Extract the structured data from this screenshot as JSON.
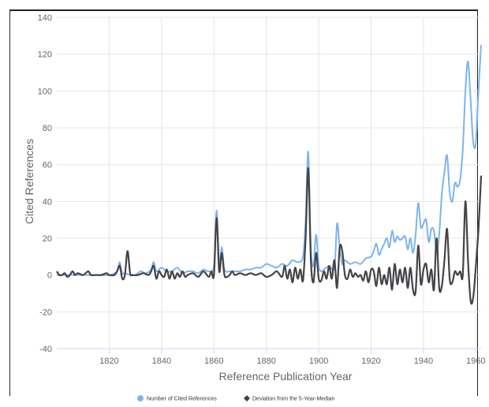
{
  "chart_data": {
    "type": "line",
    "xlabel": "Reference Publication Year",
    "ylabel": "Cited References",
    "xlim": [
      1800,
      1962
    ],
    "ylim": [
      -40,
      140
    ],
    "x_ticks": [
      1820,
      1840,
      1860,
      1880,
      1900,
      1920,
      1940,
      1960
    ],
    "y_ticks": [
      -40,
      -20,
      0,
      20,
      40,
      60,
      80,
      100,
      120,
      140
    ],
    "grid": true,
    "legend_position": "bottom",
    "series": [
      {
        "name": "Number of Cited References",
        "color": "#7cb5ec",
        "points": [
          [
            1800,
            0
          ],
          [
            1805,
            0
          ],
          [
            1810,
            0
          ],
          [
            1815,
            0
          ],
          [
            1820,
            0
          ],
          [
            1823,
            2
          ],
          [
            1824,
            7
          ],
          [
            1825,
            1
          ],
          [
            1826,
            1
          ],
          [
            1828,
            0
          ],
          [
            1830,
            0
          ],
          [
            1832,
            2
          ],
          [
            1834,
            1
          ],
          [
            1836,
            3
          ],
          [
            1837,
            7
          ],
          [
            1838,
            2
          ],
          [
            1840,
            4
          ],
          [
            1842,
            2
          ],
          [
            1844,
            2
          ],
          [
            1846,
            4
          ],
          [
            1848,
            1
          ],
          [
            1850,
            2
          ],
          [
            1852,
            2
          ],
          [
            1854,
            1
          ],
          [
            1856,
            3
          ],
          [
            1858,
            2
          ],
          [
            1860,
            5
          ],
          [
            1861,
            35
          ],
          [
            1862,
            6
          ],
          [
            1863,
            15
          ],
          [
            1864,
            3
          ],
          [
            1866,
            2
          ],
          [
            1868,
            2
          ],
          [
            1870,
            2
          ],
          [
            1872,
            3
          ],
          [
            1874,
            3
          ],
          [
            1876,
            4
          ],
          [
            1878,
            4
          ],
          [
            1880,
            6
          ],
          [
            1882,
            5
          ],
          [
            1884,
            4
          ],
          [
            1886,
            6
          ],
          [
            1888,
            5
          ],
          [
            1890,
            8
          ],
          [
            1892,
            7
          ],
          [
            1894,
            10
          ],
          [
            1895,
            30
          ],
          [
            1896,
            67
          ],
          [
            1897,
            15
          ],
          [
            1898,
            5
          ],
          [
            1899,
            22
          ],
          [
            1900,
            5
          ],
          [
            1901,
            2
          ],
          [
            1902,
            3
          ],
          [
            1904,
            5
          ],
          [
            1906,
            4
          ],
          [
            1907,
            28
          ],
          [
            1908,
            15
          ],
          [
            1909,
            6
          ],
          [
            1910,
            8
          ],
          [
            1912,
            6
          ],
          [
            1914,
            7
          ],
          [
            1916,
            6
          ],
          [
            1918,
            9
          ],
          [
            1920,
            10
          ],
          [
            1921,
            13
          ],
          [
            1922,
            17
          ],
          [
            1923,
            11
          ],
          [
            1924,
            14
          ],
          [
            1925,
            17
          ],
          [
            1926,
            20
          ],
          [
            1927,
            15
          ],
          [
            1928,
            24
          ],
          [
            1929,
            18
          ],
          [
            1930,
            21
          ],
          [
            1931,
            19
          ],
          [
            1932,
            20
          ],
          [
            1933,
            21
          ],
          [
            1934,
            14
          ],
          [
            1935,
            20
          ],
          [
            1936,
            12
          ],
          [
            1937,
            22
          ],
          [
            1938,
            39
          ],
          [
            1939,
            26
          ],
          [
            1940,
            28
          ],
          [
            1941,
            30
          ],
          [
            1942,
            18
          ],
          [
            1943,
            25
          ],
          [
            1944,
            24
          ],
          [
            1945,
            12
          ],
          [
            1946,
            22
          ],
          [
            1947,
            44
          ],
          [
            1948,
            56
          ],
          [
            1949,
            65
          ],
          [
            1950,
            45
          ],
          [
            1951,
            40
          ],
          [
            1952,
            50
          ],
          [
            1953,
            48
          ],
          [
            1954,
            52
          ],
          [
            1955,
            68
          ],
          [
            1956,
            100
          ],
          [
            1957,
            116
          ],
          [
            1958,
            95
          ],
          [
            1959,
            72
          ],
          [
            1960,
            72
          ],
          [
            1961,
            100
          ],
          [
            1962,
            125
          ]
        ]
      },
      {
        "name": "Deviation from the 5-Year-Median",
        "color": "#434348",
        "points": [
          [
            1800,
            2
          ],
          [
            1801,
            0
          ],
          [
            1802,
            0
          ],
          [
            1803,
            1
          ],
          [
            1804,
            -1
          ],
          [
            1805,
            0
          ],
          [
            1806,
            2
          ],
          [
            1807,
            0
          ],
          [
            1808,
            1
          ],
          [
            1810,
            0
          ],
          [
            1812,
            2
          ],
          [
            1813,
            0
          ],
          [
            1815,
            0
          ],
          [
            1817,
            0
          ],
          [
            1819,
            1
          ],
          [
            1820,
            0
          ],
          [
            1822,
            0
          ],
          [
            1823,
            2
          ],
          [
            1824,
            5
          ],
          [
            1825,
            -2
          ],
          [
            1826,
            0
          ],
          [
            1827,
            13
          ],
          [
            1828,
            1
          ],
          [
            1829,
            0
          ],
          [
            1831,
            0
          ],
          [
            1833,
            1
          ],
          [
            1835,
            0
          ],
          [
            1836,
            2
          ],
          [
            1837,
            5
          ],
          [
            1838,
            -2
          ],
          [
            1839,
            2
          ],
          [
            1840,
            0
          ],
          [
            1841,
            -1
          ],
          [
            1842,
            3
          ],
          [
            1843,
            -2
          ],
          [
            1844,
            2
          ],
          [
            1845,
            -2
          ],
          [
            1846,
            1
          ],
          [
            1847,
            -1
          ],
          [
            1848,
            2
          ],
          [
            1849,
            -1
          ],
          [
            1850,
            0
          ],
          [
            1852,
            1
          ],
          [
            1854,
            -1
          ],
          [
            1856,
            2
          ],
          [
            1858,
            -1
          ],
          [
            1859,
            2
          ],
          [
            1860,
            0
          ],
          [
            1861,
            31
          ],
          [
            1862,
            2
          ],
          [
            1863,
            12
          ],
          [
            1864,
            0
          ],
          [
            1865,
            -1
          ],
          [
            1866,
            0
          ],
          [
            1867,
            2
          ],
          [
            1868,
            0
          ],
          [
            1870,
            1
          ],
          [
            1872,
            0
          ],
          [
            1874,
            1
          ],
          [
            1876,
            0
          ],
          [
            1878,
            1
          ],
          [
            1880,
            -1
          ],
          [
            1882,
            0
          ],
          [
            1884,
            2
          ],
          [
            1886,
            -1
          ],
          [
            1887,
            5
          ],
          [
            1888,
            -2
          ],
          [
            1889,
            3
          ],
          [
            1890,
            -4
          ],
          [
            1891,
            4
          ],
          [
            1892,
            -2
          ],
          [
            1893,
            3
          ],
          [
            1894,
            -3
          ],
          [
            1895,
            20
          ],
          [
            1896,
            58
          ],
          [
            1897,
            8
          ],
          [
            1898,
            -4
          ],
          [
            1899,
            12
          ],
          [
            1900,
            -2
          ],
          [
            1901,
            -3
          ],
          [
            1902,
            2
          ],
          [
            1903,
            -2
          ],
          [
            1904,
            5
          ],
          [
            1905,
            -2
          ],
          [
            1906,
            8
          ],
          [
            1907,
            -7
          ],
          [
            1908,
            15
          ],
          [
            1909,
            13
          ],
          [
            1910,
            0
          ],
          [
            1911,
            -2
          ],
          [
            1912,
            3
          ],
          [
            1913,
            -1
          ],
          [
            1914,
            1
          ],
          [
            1915,
            -1
          ],
          [
            1916,
            0
          ],
          [
            1917,
            -3
          ],
          [
            1918,
            2
          ],
          [
            1919,
            -4
          ],
          [
            1920,
            3
          ],
          [
            1921,
            2
          ],
          [
            1922,
            -6
          ],
          [
            1923,
            4
          ],
          [
            1924,
            -5
          ],
          [
            1925,
            0
          ],
          [
            1926,
            -5
          ],
          [
            1927,
            4
          ],
          [
            1928,
            -8
          ],
          [
            1929,
            6
          ],
          [
            1930,
            -5
          ],
          [
            1931,
            3
          ],
          [
            1932,
            -4
          ],
          [
            1933,
            4
          ],
          [
            1934,
            -7
          ],
          [
            1935,
            4
          ],
          [
            1936,
            -8
          ],
          [
            1937,
            -9
          ],
          [
            1938,
            16
          ],
          [
            1939,
            -5
          ],
          [
            1940,
            3
          ],
          [
            1941,
            6
          ],
          [
            1942,
            -4
          ],
          [
            1943,
            3
          ],
          [
            1944,
            -8
          ],
          [
            1945,
            20
          ],
          [
            1946,
            -7
          ],
          [
            1947,
            -6
          ],
          [
            1948,
            8
          ],
          [
            1949,
            25
          ],
          [
            1950,
            -2
          ],
          [
            1951,
            -4
          ],
          [
            1952,
            2
          ],
          [
            1953,
            0
          ],
          [
            1954,
            2
          ],
          [
            1955,
            0
          ],
          [
            1956,
            40
          ],
          [
            1957,
            8
          ],
          [
            1958,
            -14
          ],
          [
            1959,
            -12
          ],
          [
            1960,
            5
          ],
          [
            1961,
            25
          ],
          [
            1962,
            54
          ]
        ]
      }
    ]
  }
}
